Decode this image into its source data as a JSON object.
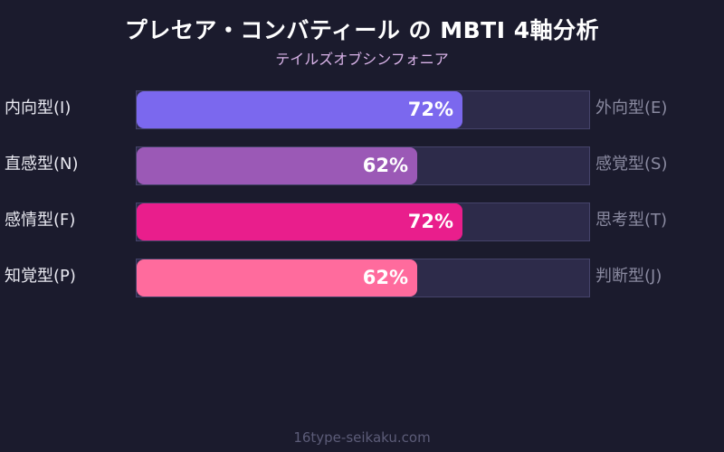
{
  "header": {
    "title": "プレセア・コンバティール の MBTI 4軸分析",
    "subtitle": "テイルズオブシンフォニア"
  },
  "rows": [
    {
      "left": "内向型(I)",
      "right": "外向型(E)",
      "value": 72,
      "label": "72%",
      "color": "#7b68ee"
    },
    {
      "left": "直感型(N)",
      "right": "感覚型(S)",
      "value": 62,
      "label": "62%",
      "color": "#9b59b6"
    },
    {
      "left": "感情型(F)",
      "right": "思考型(T)",
      "value": 72,
      "label": "72%",
      "color": "#e91e8c"
    },
    {
      "left": "知覚型(P)",
      "right": "判断型(J)",
      "value": 62,
      "label": "62%",
      "color": "#ff6b9d"
    }
  ],
  "footer": "16type-seikaku.com",
  "chart_data": {
    "type": "bar",
    "orientation": "horizontal",
    "title": "プレセア・コンバティール の MBTI 4軸分析",
    "subtitle": "テイルズオブシンフォニア",
    "categories": [
      "内向型(I) / 外向型(E)",
      "直感型(N) / 感覚型(S)",
      "感情型(F) / 思考型(T)",
      "知覚型(P) / 判断型(J)"
    ],
    "values": [
      72,
      62,
      72,
      62
    ],
    "data_labels": [
      "72%",
      "62%",
      "72%",
      "62%"
    ],
    "left_labels": [
      "内向型(I)",
      "直感型(N)",
      "感情型(F)",
      "知覚型(P)"
    ],
    "right_labels": [
      "外向型(E)",
      "感覚型(S)",
      "思考型(T)",
      "判断型(J)"
    ],
    "colors": [
      "#7b68ee",
      "#9b59b6",
      "#e91e8c",
      "#ff6b9d"
    ],
    "xlim": [
      0,
      100
    ],
    "grid": false,
    "legend": "none"
  }
}
